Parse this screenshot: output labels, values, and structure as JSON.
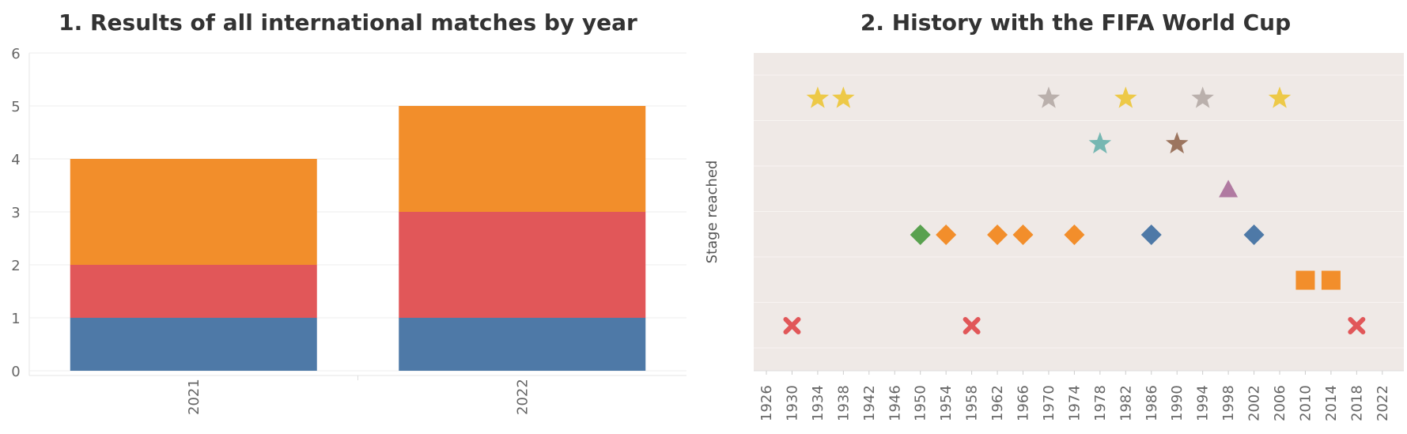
{
  "titles": {
    "left": "1. Results of all international matches by year",
    "right": "2. History with the FIFA World Cup"
  },
  "colors": {
    "blue": "#4e79a7",
    "red": "#e15759",
    "orange": "#f28e2b",
    "green": "#59a14f",
    "gold": "#edc948",
    "gray": "#bab0ac",
    "teal": "#76b7b2",
    "brown": "#9c755f",
    "purple": "#b07aa1",
    "panel_bg": "#efe9e6"
  },
  "chart_data": [
    {
      "type": "bar",
      "stacked": true,
      "title": "1. Results of all international matches by year",
      "categories": [
        "2021",
        "2022"
      ],
      "series": [
        {
          "color": "#4e79a7",
          "values": [
            1,
            1
          ]
        },
        {
          "color": "#e15759",
          "values": [
            1,
            2
          ]
        },
        {
          "color": "#f28e2b",
          "values": [
            2,
            2
          ]
        }
      ],
      "ylim": [
        0,
        6
      ],
      "yticks": [
        0,
        1,
        2,
        3,
        4,
        5,
        6
      ],
      "grid": true
    },
    {
      "type": "scatter",
      "title": "2. History with the FIFA World Cup",
      "ylabel": "Stage reached",
      "xticks": [
        1926,
        1930,
        1934,
        1938,
        1942,
        1946,
        1950,
        1954,
        1958,
        1962,
        1966,
        1970,
        1974,
        1978,
        1982,
        1986,
        1990,
        1994,
        1998,
        2002,
        2006,
        2010,
        2014,
        2018,
        2022
      ],
      "xlim": [
        1926,
        2022
      ],
      "ylim": [
        0,
        7
      ],
      "grid": true,
      "points": [
        {
          "x": 1930,
          "y": 1,
          "shape": "x",
          "color": "#e15759"
        },
        {
          "x": 1934,
          "y": 6,
          "shape": "star",
          "color": "#edc948"
        },
        {
          "x": 1938,
          "y": 6,
          "shape": "star",
          "color": "#edc948"
        },
        {
          "x": 1950,
          "y": 3,
          "shape": "diamond",
          "color": "#59a14f"
        },
        {
          "x": 1954,
          "y": 3,
          "shape": "diamond",
          "color": "#f28e2b"
        },
        {
          "x": 1958,
          "y": 1,
          "shape": "x",
          "color": "#e15759"
        },
        {
          "x": 1962,
          "y": 3,
          "shape": "diamond",
          "color": "#f28e2b"
        },
        {
          "x": 1966,
          "y": 3,
          "shape": "diamond",
          "color": "#f28e2b"
        },
        {
          "x": 1970,
          "y": 6,
          "shape": "star",
          "color": "#bab0ac"
        },
        {
          "x": 1974,
          "y": 3,
          "shape": "diamond",
          "color": "#f28e2b"
        },
        {
          "x": 1978,
          "y": 5,
          "shape": "star",
          "color": "#76b7b2"
        },
        {
          "x": 1982,
          "y": 6,
          "shape": "star",
          "color": "#edc948"
        },
        {
          "x": 1986,
          "y": 3,
          "shape": "diamond",
          "color": "#4e79a7"
        },
        {
          "x": 1990,
          "y": 5,
          "shape": "star",
          "color": "#9c755f"
        },
        {
          "x": 1994,
          "y": 6,
          "shape": "star",
          "color": "#bab0ac"
        },
        {
          "x": 1998,
          "y": 4,
          "shape": "triangle",
          "color": "#b07aa1"
        },
        {
          "x": 2002,
          "y": 3,
          "shape": "diamond",
          "color": "#4e79a7"
        },
        {
          "x": 2006,
          "y": 6,
          "shape": "star",
          "color": "#edc948"
        },
        {
          "x": 2010,
          "y": 2,
          "shape": "square",
          "color": "#f28e2b"
        },
        {
          "x": 2014,
          "y": 2,
          "shape": "square",
          "color": "#f28e2b"
        },
        {
          "x": 2018,
          "y": 1,
          "shape": "x",
          "color": "#e15759"
        }
      ]
    }
  ]
}
